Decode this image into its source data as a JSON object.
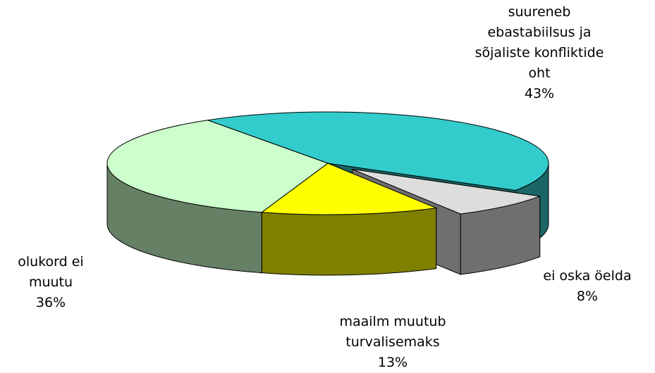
{
  "chart_data": {
    "type": "pie",
    "view": "3d",
    "categories": [
      "suureneb ebastabiilsus ja sõjaliste konfliktide oht",
      "ei oska öelda",
      "maailm muutub turvalisemaks",
      "olukord ei muutu"
    ],
    "values": [
      43,
      8,
      13,
      36
    ],
    "value_labels": [
      "43%",
      "8%",
      "13%",
      "36%"
    ],
    "colors": [
      "#33CCCC",
      "#DDDDDD",
      "#FFFF00",
      "#CCFFCC"
    ],
    "exploded": [
      false,
      true,
      false,
      false
    ]
  }
}
